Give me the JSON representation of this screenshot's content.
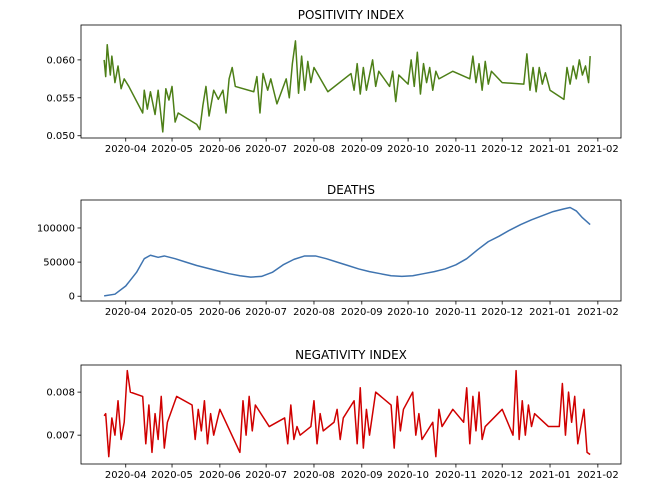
{
  "chart_data": [
    {
      "type": "line",
      "title": "POSITIVITY INDEX",
      "color": "#4d7f17",
      "xlim": [
        "2020-03-03",
        "2021-02-16"
      ],
      "xticks": [
        {
          "value": "2020-04-01",
          "label": "2020-04"
        },
        {
          "value": "2020-05-01",
          "label": "2020-05"
        },
        {
          "value": "2020-06-01",
          "label": "2020-06"
        },
        {
          "value": "2020-07-01",
          "label": "2020-07"
        },
        {
          "value": "2020-08-01",
          "label": "2020-08"
        },
        {
          "value": "2020-09-01",
          "label": "2020-09"
        },
        {
          "value": "2020-10-01",
          "label": "2020-10"
        },
        {
          "value": "2020-11-01",
          "label": "2020-11"
        },
        {
          "value": "2020-12-01",
          "label": "2020-12"
        },
        {
          "value": "2021-01-01",
          "label": "2021-01"
        },
        {
          "value": "2021-02-01",
          "label": "2021-02"
        }
      ],
      "ylim": [
        0.0497,
        0.0646
      ],
      "yticks": [
        {
          "value": 0.05,
          "label": "0.050"
        },
        {
          "value": 0.055,
          "label": "0.055"
        },
        {
          "value": 0.06,
          "label": "0.060"
        }
      ],
      "x": [
        "2020-03-18",
        "2020-03-19",
        "2020-03-20",
        "2020-03-22",
        "2020-03-23",
        "2020-03-25",
        "2020-03-27",
        "2020-03-29",
        "2020-03-31",
        "2020-04-03",
        "2020-04-12",
        "2020-04-13",
        "2020-04-15",
        "2020-04-17",
        "2020-04-20",
        "2020-04-22",
        "2020-04-25",
        "2020-04-27",
        "2020-04-29",
        "2020-05-01",
        "2020-05-03",
        "2020-05-05",
        "2020-05-17",
        "2020-05-19",
        "2020-05-21",
        "2020-05-23",
        "2020-05-25",
        "2020-05-28",
        "2020-05-31",
        "2020-06-03",
        "2020-06-05",
        "2020-06-07",
        "2020-06-09",
        "2020-06-11",
        "2020-06-23",
        "2020-06-25",
        "2020-06-27",
        "2020-06-29",
        "2020-07-02",
        "2020-07-04",
        "2020-07-08",
        "2020-07-14",
        "2020-07-16",
        "2020-07-18",
        "2020-07-20",
        "2020-07-22",
        "2020-07-24",
        "2020-07-26",
        "2020-07-28",
        "2020-07-30",
        "2020-08-01",
        "2020-08-10",
        "2020-08-25",
        "2020-08-27",
        "2020-08-29",
        "2020-08-31",
        "2020-09-02",
        "2020-09-04",
        "2020-09-06",
        "2020-09-08",
        "2020-09-10",
        "2020-09-12",
        "2020-09-19",
        "2020-09-21",
        "2020-09-23",
        "2020-09-25",
        "2020-10-01",
        "2020-10-03",
        "2020-10-05",
        "2020-10-07",
        "2020-10-09",
        "2020-10-11",
        "2020-10-13",
        "2020-10-15",
        "2020-10-17",
        "2020-10-19",
        "2020-10-21",
        "2020-10-30",
        "2020-11-10",
        "2020-11-12",
        "2020-11-14",
        "2020-11-16",
        "2020-11-18",
        "2020-11-20",
        "2020-11-22",
        "2020-11-24",
        "2020-12-01",
        "2020-12-15",
        "2020-12-17",
        "2020-12-19",
        "2020-12-21",
        "2020-12-23",
        "2020-12-25",
        "2020-12-27",
        "2020-12-29",
        "2021-01-01",
        "2021-01-10",
        "2021-01-12",
        "2021-01-14",
        "2021-01-16",
        "2021-01-18",
        "2021-01-20",
        "2021-01-22",
        "2021-01-24",
        "2021-01-26",
        "2021-01-27"
      ],
      "values": [
        0.06,
        0.0578,
        0.062,
        0.058,
        0.0605,
        0.057,
        0.0592,
        0.0562,
        0.0575,
        0.0565,
        0.053,
        0.056,
        0.0535,
        0.0558,
        0.0528,
        0.056,
        0.0505,
        0.0562,
        0.0547,
        0.0565,
        0.0518,
        0.053,
        0.0515,
        0.0508,
        0.054,
        0.0565,
        0.0526,
        0.056,
        0.0548,
        0.056,
        0.053,
        0.0575,
        0.059,
        0.0565,
        0.0558,
        0.0578,
        0.053,
        0.0582,
        0.056,
        0.0575,
        0.0542,
        0.0575,
        0.055,
        0.0595,
        0.0625,
        0.0556,
        0.0605,
        0.056,
        0.0598,
        0.057,
        0.059,
        0.0558,
        0.0582,
        0.056,
        0.0595,
        0.0555,
        0.059,
        0.056,
        0.058,
        0.06,
        0.0565,
        0.0585,
        0.0565,
        0.0585,
        0.0545,
        0.058,
        0.0568,
        0.06,
        0.0565,
        0.061,
        0.0555,
        0.0595,
        0.057,
        0.059,
        0.056,
        0.0585,
        0.0575,
        0.0585,
        0.0575,
        0.0605,
        0.057,
        0.0595,
        0.056,
        0.0598,
        0.0568,
        0.0585,
        0.057,
        0.0568,
        0.0608,
        0.056,
        0.059,
        0.0558,
        0.059,
        0.0568,
        0.0583,
        0.056,
        0.0548,
        0.059,
        0.0568,
        0.0592,
        0.0575,
        0.06,
        0.058,
        0.0592,
        0.057,
        0.0605
      ]
    },
    {
      "type": "line",
      "title": "DEATHS",
      "color": "#3f74b0",
      "xlim": [
        "2020-03-03",
        "2021-02-16"
      ],
      "xticks": [
        {
          "value": "2020-04-01",
          "label": "2020-04"
        },
        {
          "value": "2020-05-01",
          "label": "2020-05"
        },
        {
          "value": "2020-06-01",
          "label": "2020-06"
        },
        {
          "value": "2020-07-01",
          "label": "2020-07"
        },
        {
          "value": "2020-08-01",
          "label": "2020-08"
        },
        {
          "value": "2020-09-01",
          "label": "2020-09"
        },
        {
          "value": "2020-10-01",
          "label": "2020-10"
        },
        {
          "value": "2020-11-01",
          "label": "2020-11"
        },
        {
          "value": "2020-12-01",
          "label": "2020-12"
        },
        {
          "value": "2021-01-01",
          "label": "2021-01"
        },
        {
          "value": "2021-02-01",
          "label": "2021-02"
        }
      ],
      "ylim": [
        -7000,
        141000
      ],
      "yticks": [
        0,
        50000,
        100000
      ],
      "x": [
        "2020-03-18",
        "2020-03-25",
        "2020-04-01",
        "2020-04-08",
        "2020-04-13",
        "2020-04-17",
        "2020-04-22",
        "2020-04-26",
        "2020-05-03",
        "2020-05-10",
        "2020-05-17",
        "2020-05-24",
        "2020-05-31",
        "2020-06-07",
        "2020-06-14",
        "2020-06-21",
        "2020-06-28",
        "2020-07-05",
        "2020-07-12",
        "2020-07-19",
        "2020-07-26",
        "2020-08-02",
        "2020-08-09",
        "2020-08-16",
        "2020-08-23",
        "2020-08-30",
        "2020-09-06",
        "2020-09-13",
        "2020-09-20",
        "2020-09-27",
        "2020-10-04",
        "2020-10-11",
        "2020-10-18",
        "2020-10-25",
        "2020-11-01",
        "2020-11-08",
        "2020-11-15",
        "2020-11-22",
        "2020-11-29",
        "2020-12-06",
        "2020-12-13",
        "2020-12-20",
        "2020-12-27",
        "2021-01-03",
        "2021-01-10",
        "2021-01-14",
        "2021-01-18",
        "2021-01-22",
        "2021-01-27"
      ],
      "values": [
        500,
        3000,
        15000,
        35000,
        55000,
        60000,
        57000,
        59000,
        55000,
        50000,
        45000,
        41000,
        37000,
        33000,
        30000,
        28000,
        29000,
        35000,
        46000,
        54000,
        59000,
        59000,
        55000,
        50000,
        45000,
        40000,
        36000,
        33000,
        30000,
        29000,
        30000,
        33000,
        36000,
        40000,
        46000,
        55000,
        68000,
        80000,
        88000,
        97000,
        105000,
        112000,
        118000,
        124000,
        128000,
        130000,
        125000,
        115000,
        105000
      ]
    },
    {
      "type": "line",
      "title": "NEGATIVITY INDEX",
      "color": "#d00000",
      "xlim": [
        "2020-03-03",
        "2021-02-16"
      ],
      "xticks": [
        {
          "value": "2020-04-01",
          "label": "2020-04"
        },
        {
          "value": "2020-05-01",
          "label": "2020-05"
        },
        {
          "value": "2020-06-01",
          "label": "2020-06"
        },
        {
          "value": "2020-07-01",
          "label": "2020-07"
        },
        {
          "value": "2020-08-01",
          "label": "2020-08"
        },
        {
          "value": "2020-09-01",
          "label": "2020-09"
        },
        {
          "value": "2020-10-01",
          "label": "2020-10"
        },
        {
          "value": "2020-11-01",
          "label": "2020-11"
        },
        {
          "value": "2020-12-01",
          "label": "2020-12"
        },
        {
          "value": "2021-01-01",
          "label": "2021-01"
        },
        {
          "value": "2021-02-01",
          "label": "2021-02"
        }
      ],
      "ylim": [
        0.00633,
        0.00863
      ],
      "yticks": [
        {
          "value": 0.007,
          "label": "0.007"
        },
        {
          "value": 0.008,
          "label": "0.008"
        }
      ],
      "x": [
        "2020-03-18",
        "2020-03-19",
        "2020-03-21",
        "2020-03-23",
        "2020-03-25",
        "2020-03-27",
        "2020-03-29",
        "2020-03-31",
        "2020-04-02",
        "2020-04-04",
        "2020-04-12",
        "2020-04-14",
        "2020-04-16",
        "2020-04-18",
        "2020-04-20",
        "2020-04-22",
        "2020-04-24",
        "2020-04-26",
        "2020-04-28",
        "2020-05-04",
        "2020-05-14",
        "2020-05-16",
        "2020-05-18",
        "2020-05-20",
        "2020-05-22",
        "2020-05-24",
        "2020-05-26",
        "2020-05-28",
        "2020-06-01",
        "2020-06-14",
        "2020-06-16",
        "2020-06-18",
        "2020-06-20",
        "2020-06-22",
        "2020-06-24",
        "2020-07-03",
        "2020-07-13",
        "2020-07-15",
        "2020-07-17",
        "2020-07-19",
        "2020-07-21",
        "2020-07-23",
        "2020-07-30",
        "2020-08-01",
        "2020-08-03",
        "2020-08-05",
        "2020-08-07",
        "2020-08-14",
        "2020-08-16",
        "2020-08-18",
        "2020-08-20",
        "2020-08-27",
        "2020-08-29",
        "2020-08-31",
        "2020-09-02",
        "2020-09-04",
        "2020-09-06",
        "2020-09-10",
        "2020-09-20",
        "2020-09-22",
        "2020-09-24",
        "2020-09-26",
        "2020-09-28",
        "2020-10-04",
        "2020-10-06",
        "2020-10-08",
        "2020-10-10",
        "2020-10-17",
        "2020-10-19",
        "2020-10-21",
        "2020-10-23",
        "2020-10-30",
        "2020-11-06",
        "2020-11-08",
        "2020-11-10",
        "2020-11-12",
        "2020-11-14",
        "2020-11-16",
        "2020-11-18",
        "2020-11-20",
        "2020-12-01",
        "2020-12-08",
        "2020-12-10",
        "2020-12-12",
        "2020-12-14",
        "2020-12-16",
        "2020-12-18",
        "2020-12-20",
        "2020-12-22",
        "2020-12-31",
        "2021-01-07",
        "2021-01-09",
        "2021-01-11",
        "2021-01-13",
        "2021-01-15",
        "2021-01-17",
        "2021-01-19",
        "2021-01-21",
        "2021-01-23",
        "2021-01-25",
        "2021-01-27"
      ],
      "values": [
        0.00745,
        0.0075,
        0.0065,
        0.0074,
        0.007,
        0.0078,
        0.0069,
        0.0073,
        0.0085,
        0.008,
        0.0079,
        0.0068,
        0.0077,
        0.0066,
        0.0075,
        0.0069,
        0.0079,
        0.0067,
        0.0073,
        0.0079,
        0.0077,
        0.0069,
        0.0076,
        0.0071,
        0.0078,
        0.0068,
        0.0075,
        0.007,
        0.0076,
        0.0066,
        0.0078,
        0.007,
        0.0079,
        0.0071,
        0.0077,
        0.0072,
        0.0074,
        0.0068,
        0.0077,
        0.0069,
        0.0072,
        0.007,
        0.0072,
        0.0078,
        0.0068,
        0.0075,
        0.0071,
        0.0073,
        0.0076,
        0.0069,
        0.0074,
        0.0078,
        0.0068,
        0.0081,
        0.0067,
        0.0076,
        0.007,
        0.008,
        0.0077,
        0.0067,
        0.0079,
        0.0071,
        0.0076,
        0.008,
        0.007,
        0.0075,
        0.0069,
        0.0073,
        0.0065,
        0.0076,
        0.0072,
        0.0076,
        0.0073,
        0.0081,
        0.0068,
        0.0079,
        0.0071,
        0.008,
        0.0069,
        0.0072,
        0.0076,
        0.007,
        0.0085,
        0.0069,
        0.0078,
        0.007,
        0.0077,
        0.0072,
        0.0075,
        0.0072,
        0.0072,
        0.0082,
        0.007,
        0.008,
        0.0073,
        0.0079,
        0.0068,
        0.0072,
        0.0076,
        0.0066,
        0.00655
      ]
    }
  ]
}
